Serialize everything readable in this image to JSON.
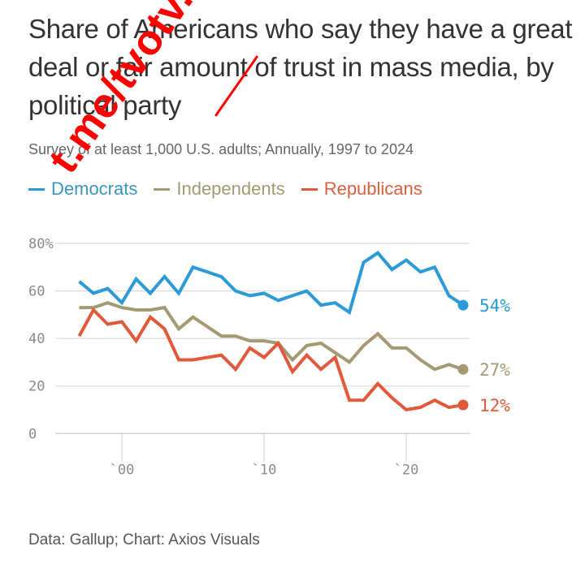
{
  "title": "Share of Americans who say they have a great deal or fair amount of trust in mass media, by political party",
  "subtitle": "Survey of at least 1,000 U.S. adults; Annually, 1997 to 2024",
  "footer": "Data: Gallup; Chart: Axios Visuals",
  "watermark": "t.me/tvotv.sk",
  "colors": {
    "democrats": "#2b9ad6",
    "independents": "#a39a72",
    "republicans": "#e0593a",
    "grid": "#dddddd",
    "axis_text": "#8a8a8a"
  },
  "legend": [
    {
      "label": "Democrats",
      "color": "#2b9ad6",
      "text_color": "#3a96bd"
    },
    {
      "label": "Independents",
      "color": "#a39a72",
      "text_color": "#a39a72"
    },
    {
      "label": "Republicans",
      "color": "#e0593a",
      "text_color": "#d9603f"
    }
  ],
  "chart_data": {
    "type": "line",
    "title": "Share of Americans who say they have a great deal or fair amount of trust in mass media, by political party",
    "subtitle": "Survey of at least 1,000 U.S. adults; Annually, 1997 to 2024",
    "xlabel": "",
    "ylabel": "",
    "x": [
      1997,
      1998,
      1999,
      2000,
      2001,
      2002,
      2003,
      2004,
      2005,
      2006,
      2007,
      2008,
      2009,
      2010,
      2011,
      2012,
      2013,
      2014,
      2015,
      2016,
      2017,
      2018,
      2019,
      2020,
      2021,
      2022,
      2023,
      2024
    ],
    "xlim": [
      1997,
      2024
    ],
    "ylim": [
      0,
      80
    ],
    "y_ticks": [
      {
        "value": 0,
        "label": "0"
      },
      {
        "value": 20,
        "label": "20"
      },
      {
        "value": 40,
        "label": "40"
      },
      {
        "value": 60,
        "label": "60"
      },
      {
        "value": 80,
        "label": "80%"
      }
    ],
    "x_ticks": [
      {
        "value": 2000,
        "label": "`00"
      },
      {
        "value": 2010,
        "label": "`10"
      },
      {
        "value": 2020,
        "label": "`20"
      }
    ],
    "grid": true,
    "legend_position": "top-left",
    "series": [
      {
        "name": "Democrats",
        "color": "#2b9ad6",
        "end_label": "54%",
        "values": [
          64,
          59,
          61,
          55,
          65,
          59,
          66,
          59,
          70,
          68,
          66,
          60,
          58,
          59,
          56,
          58,
          60,
          54,
          55,
          51,
          72,
          76,
          69,
          73,
          68,
          70,
          58,
          54
        ]
      },
      {
        "name": "Independents",
        "color": "#a39a72",
        "end_label": "27%",
        "values": [
          53,
          53,
          55,
          53,
          52,
          52,
          53,
          44,
          49,
          45,
          41,
          41,
          39,
          39,
          38,
          31,
          37,
          38,
          34,
          30,
          37,
          42,
          36,
          36,
          31,
          27,
          29,
          27
        ]
      },
      {
        "name": "Republicans",
        "color": "#e0593a",
        "end_label": "12%",
        "values": [
          41,
          52,
          46,
          47,
          39,
          49,
          44,
          31,
          31,
          32,
          33,
          27,
          36,
          32,
          38,
          26,
          33,
          27,
          32,
          14,
          14,
          21,
          15,
          10,
          11,
          14,
          11,
          12
        ]
      }
    ]
  }
}
